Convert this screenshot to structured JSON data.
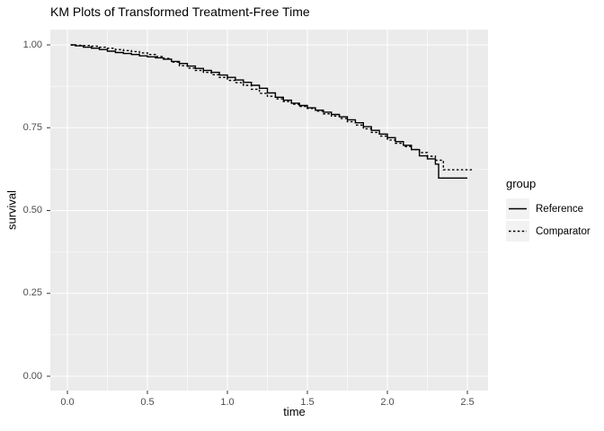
{
  "colors": {
    "background": "#ffffff",
    "panel_bg": "#ebebeb",
    "grid_major": "#ffffff",
    "grid_minor": "#ffffff",
    "line": "#000000",
    "tick_mark": "#333333",
    "tick_label": "#4d4d4d",
    "legend_key_bg": "#f2f2f2",
    "text": "#000000"
  },
  "chart_data": {
    "type": "line",
    "subtype": "kaplan-meier-step",
    "title": "KM Plots of Transformed Treatment-Free Time",
    "xlabel": "time",
    "ylabel": "survival",
    "xlim": [
      0,
      2.5
    ],
    "ylim": [
      0,
      1
    ],
    "grid": true,
    "legend_title": "group",
    "legend_position": "right",
    "xticks": [
      {
        "v": 0.0,
        "label": "0.0"
      },
      {
        "v": 0.5,
        "label": "0.5"
      },
      {
        "v": 1.0,
        "label": "1.0"
      },
      {
        "v": 1.5,
        "label": "1.5"
      },
      {
        "v": 2.0,
        "label": "2.0"
      },
      {
        "v": 2.5,
        "label": "2.5"
      }
    ],
    "yticks": [
      {
        "v": 1.0,
        "label": "1.00"
      },
      {
        "v": 0.75,
        "label": "0.75"
      },
      {
        "v": 0.5,
        "label": "0.50"
      },
      {
        "v": 0.25,
        "label": "0.25"
      },
      {
        "v": 0.0,
        "label": "0.00"
      }
    ],
    "x_minor": [
      0.25,
      0.75,
      1.25,
      1.75,
      2.25
    ],
    "y_minor": [
      0.125,
      0.375,
      0.625,
      0.875
    ],
    "series": [
      {
        "name": "Reference",
        "style": "solid",
        "points": [
          [
            0.02,
            1.0
          ],
          [
            0.05,
            0.997
          ],
          [
            0.1,
            0.993
          ],
          [
            0.15,
            0.99
          ],
          [
            0.2,
            0.986
          ],
          [
            0.25,
            0.981
          ],
          [
            0.3,
            0.977
          ],
          [
            0.35,
            0.974
          ],
          [
            0.4,
            0.971
          ],
          [
            0.45,
            0.967
          ],
          [
            0.5,
            0.964
          ],
          [
            0.55,
            0.961
          ],
          [
            0.6,
            0.957
          ],
          [
            0.65,
            0.95
          ],
          [
            0.7,
            0.944
          ],
          [
            0.75,
            0.936
          ],
          [
            0.8,
            0.929
          ],
          [
            0.85,
            0.923
          ],
          [
            0.9,
            0.917
          ],
          [
            0.95,
            0.909
          ],
          [
            1.0,
            0.902
          ],
          [
            1.05,
            0.894
          ],
          [
            1.1,
            0.887
          ],
          [
            1.15,
            0.878
          ],
          [
            1.2,
            0.869
          ],
          [
            1.25,
            0.855
          ],
          [
            1.3,
            0.842
          ],
          [
            1.35,
            0.833
          ],
          [
            1.4,
            0.824
          ],
          [
            1.45,
            0.817
          ],
          [
            1.5,
            0.81
          ],
          [
            1.55,
            0.803
          ],
          [
            1.6,
            0.797
          ],
          [
            1.65,
            0.79
          ],
          [
            1.7,
            0.783
          ],
          [
            1.75,
            0.774
          ],
          [
            1.8,
            0.765
          ],
          [
            1.85,
            0.753
          ],
          [
            1.9,
            0.742
          ],
          [
            1.95,
            0.731
          ],
          [
            2.0,
            0.72
          ],
          [
            2.05,
            0.708
          ],
          [
            2.1,
            0.697
          ],
          [
            2.15,
            0.684
          ],
          [
            2.2,
            0.665
          ],
          [
            2.25,
            0.656
          ],
          [
            2.3,
            0.64
          ],
          [
            2.32,
            0.598
          ],
          [
            2.5,
            0.598
          ]
        ]
      },
      {
        "name": "Comparator",
        "style": "dashed",
        "points": [
          [
            0.02,
            1.0
          ],
          [
            0.05,
            0.999
          ],
          [
            0.1,
            0.998
          ],
          [
            0.15,
            0.996
          ],
          [
            0.2,
            0.993
          ],
          [
            0.25,
            0.99
          ],
          [
            0.3,
            0.986
          ],
          [
            0.35,
            0.983
          ],
          [
            0.4,
            0.98
          ],
          [
            0.45,
            0.976
          ],
          [
            0.5,
            0.971
          ],
          [
            0.55,
            0.965
          ],
          [
            0.6,
            0.959
          ],
          [
            0.65,
            0.948
          ],
          [
            0.7,
            0.937
          ],
          [
            0.75,
            0.93
          ],
          [
            0.8,
            0.923
          ],
          [
            0.85,
            0.917
          ],
          [
            0.9,
            0.91
          ],
          [
            0.95,
            0.902
          ],
          [
            1.0,
            0.893
          ],
          [
            1.05,
            0.886
          ],
          [
            1.1,
            0.878
          ],
          [
            1.15,
            0.866
          ],
          [
            1.2,
            0.854
          ],
          [
            1.25,
            0.845
          ],
          [
            1.3,
            0.837
          ],
          [
            1.35,
            0.829
          ],
          [
            1.4,
            0.821
          ],
          [
            1.45,
            0.814
          ],
          [
            1.5,
            0.808
          ],
          [
            1.55,
            0.8
          ],
          [
            1.6,
            0.792
          ],
          [
            1.65,
            0.785
          ],
          [
            1.7,
            0.778
          ],
          [
            1.75,
            0.768
          ],
          [
            1.8,
            0.758
          ],
          [
            1.85,
            0.747
          ],
          [
            1.9,
            0.736
          ],
          [
            1.95,
            0.725
          ],
          [
            2.0,
            0.713
          ],
          [
            2.05,
            0.703
          ],
          [
            2.1,
            0.693
          ],
          [
            2.15,
            0.684
          ],
          [
            2.2,
            0.675
          ],
          [
            2.25,
            0.664
          ],
          [
            2.3,
            0.652
          ],
          [
            2.35,
            0.623
          ],
          [
            2.53,
            0.623
          ]
        ]
      }
    ]
  }
}
